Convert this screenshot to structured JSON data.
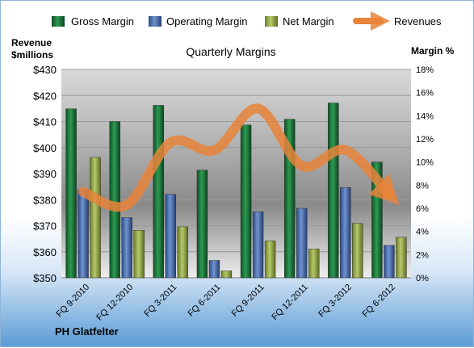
{
  "chart_data": {
    "type": "bar",
    "title": "Quarterly Margins",
    "company": "PH Glatfelter",
    "left_axis_label": [
      "Revenue",
      "$millions"
    ],
    "right_axis_label": "Margin %",
    "categories": [
      "FQ 9-2010",
      "FQ 12-2010",
      "FQ 3-2011",
      "FQ 6-2011",
      "FQ 9-2011",
      "FQ 12-2011",
      "FQ 3-2012",
      "FQ 6-2012"
    ],
    "series": [
      {
        "name": "Gross Margin",
        "axis": "right",
        "type": "bar",
        "color": "#1e7a3c",
        "values": [
          14.6,
          13.5,
          14.9,
          9.3,
          13.2,
          13.7,
          15.1,
          10.0
        ]
      },
      {
        "name": "Operating Margin",
        "axis": "right",
        "type": "bar",
        "color": "#4a6fb0",
        "values": [
          7.6,
          5.2,
          7.2,
          1.5,
          5.7,
          6.0,
          7.8,
          2.8
        ]
      },
      {
        "name": "Net Margin",
        "axis": "right",
        "type": "bar",
        "color": "#9bb04b",
        "values": [
          10.4,
          4.1,
          4.4,
          0.6,
          3.2,
          2.5,
          4.7,
          3.5
        ]
      },
      {
        "name": "Revenues",
        "axis": "left",
        "type": "line",
        "color": "#e8843a",
        "values": [
          383,
          378,
          402,
          399,
          415,
          393,
          399,
          382
        ]
      }
    ],
    "left_axis": {
      "min": 350,
      "max": 430,
      "step": 10,
      "tick_labels": [
        "$350",
        "$360",
        "$370",
        "$380",
        "$390",
        "$400",
        "$410",
        "$420",
        "$430"
      ]
    },
    "right_axis": {
      "min": 0,
      "max": 18,
      "step": 2,
      "tick_labels": [
        "0%",
        "2%",
        "4%",
        "6%",
        "8%",
        "10%",
        "12%",
        "14%",
        "16%",
        "18%"
      ]
    },
    "grid": true,
    "legend_position": "top"
  }
}
